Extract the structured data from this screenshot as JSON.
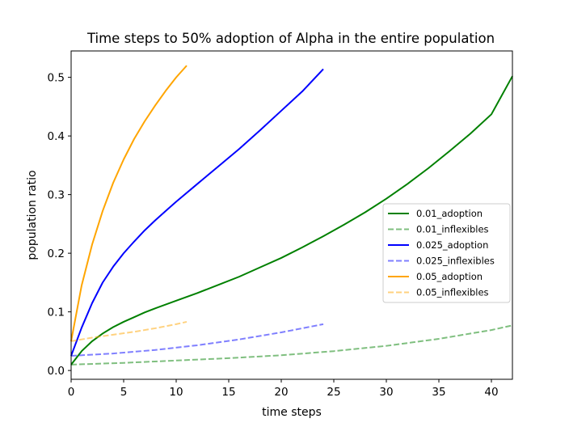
{
  "chart_data": {
    "type": "line",
    "title": "Time steps to 50% adoption of Alpha in the entire population",
    "xlabel": "time steps",
    "ylabel": "population ratio",
    "xlim": [
      0,
      42
    ],
    "ylim": [
      -0.015,
      0.545
    ],
    "xticks": [
      0,
      5,
      10,
      15,
      20,
      25,
      30,
      35,
      40
    ],
    "yticks": [
      0.0,
      0.1,
      0.2,
      0.3,
      0.4,
      0.5
    ],
    "xtick_labels": [
      "0",
      "5",
      "10",
      "15",
      "20",
      "25",
      "30",
      "35",
      "40"
    ],
    "ytick_labels": [
      "0.0",
      "0.1",
      "0.2",
      "0.3",
      "0.4",
      "0.5"
    ],
    "grid": false,
    "legend_position": "center-right",
    "series": [
      {
        "name": "0.01_adoption",
        "color": "#008000",
        "style": "solid",
        "x": [
          0,
          1,
          2,
          3,
          4,
          5,
          6,
          7,
          8,
          10,
          12,
          14,
          16,
          18,
          20,
          22,
          24,
          26,
          28,
          30,
          32,
          34,
          36,
          38,
          40,
          42
        ],
        "y": [
          0.01,
          0.033,
          0.05,
          0.063,
          0.074,
          0.083,
          0.091,
          0.099,
          0.106,
          0.119,
          0.132,
          0.146,
          0.16,
          0.176,
          0.192,
          0.21,
          0.229,
          0.249,
          0.27,
          0.293,
          0.318,
          0.345,
          0.374,
          0.404,
          0.437,
          0.502
        ]
      },
      {
        "name": "0.01_inflexibles",
        "color": "#008000",
        "style": "dashed",
        "x": [
          0,
          5,
          10,
          15,
          20,
          25,
          30,
          35,
          40,
          42
        ],
        "y": [
          0.01,
          0.013,
          0.017,
          0.021,
          0.026,
          0.033,
          0.042,
          0.054,
          0.069,
          0.077
        ]
      },
      {
        "name": "0.025_adoption",
        "color": "#0000ff",
        "style": "solid",
        "x": [
          0,
          1,
          2,
          3,
          4,
          5,
          6,
          7,
          8,
          9,
          10,
          12,
          14,
          16,
          18,
          20,
          22,
          24
        ],
        "y": [
          0.025,
          0.073,
          0.115,
          0.15,
          0.177,
          0.2,
          0.22,
          0.239,
          0.256,
          0.272,
          0.288,
          0.318,
          0.348,
          0.378,
          0.41,
          0.443,
          0.476,
          0.514
        ]
      },
      {
        "name": "0.025_inflexibles",
        "color": "#0000ff",
        "style": "dashed",
        "x": [
          0,
          4,
          8,
          12,
          16,
          20,
          24
        ],
        "y": [
          0.025,
          0.029,
          0.035,
          0.043,
          0.053,
          0.065,
          0.079
        ]
      },
      {
        "name": "0.05_adoption",
        "color": "#ffa500",
        "style": "solid",
        "x": [
          0,
          1,
          2,
          3,
          4,
          5,
          6,
          7,
          8,
          9,
          10,
          11
        ],
        "y": [
          0.05,
          0.145,
          0.215,
          0.272,
          0.32,
          0.36,
          0.395,
          0.425,
          0.452,
          0.477,
          0.5,
          0.52
        ]
      },
      {
        "name": "0.05_inflexibles",
        "color": "#ffa500",
        "style": "dashed",
        "x": [
          0,
          2,
          4,
          6,
          8,
          10,
          11
        ],
        "y": [
          0.05,
          0.056,
          0.061,
          0.066,
          0.072,
          0.079,
          0.083
        ]
      }
    ]
  }
}
